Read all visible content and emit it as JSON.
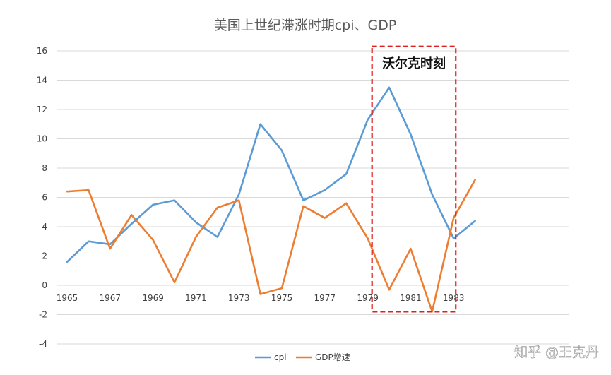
{
  "chart_data": {
    "type": "line",
    "title": "美国上世纪滞涨时期cpi、GDP",
    "x": [
      1965,
      1966,
      1967,
      1968,
      1969,
      1970,
      1971,
      1972,
      1973,
      1974,
      1975,
      1976,
      1977,
      1978,
      1979,
      1980,
      1981,
      1982,
      1983,
      1984
    ],
    "x_tick_labels": [
      "1965",
      "1967",
      "1969",
      "1971",
      "1973",
      "1975",
      "1977",
      "1979",
      "1981",
      "1983"
    ],
    "y_tick_labels": [
      "16",
      "14",
      "12",
      "10",
      "8",
      "6",
      "4",
      "2",
      "0",
      "-2",
      "-4"
    ],
    "ylim": [
      -4,
      16
    ],
    "grid": true,
    "legend_position": "bottom",
    "series": [
      {
        "name": "cpi",
        "color": "#5b9bd5",
        "values": [
          1.6,
          3.0,
          2.8,
          4.2,
          5.5,
          5.8,
          4.3,
          3.3,
          6.2,
          11.0,
          9.2,
          5.8,
          6.5,
          7.6,
          11.3,
          13.5,
          10.3,
          6.2,
          3.2,
          4.4
        ]
      },
      {
        "name": "GDP增速",
        "color": "#ed7d31",
        "values": [
          6.4,
          6.5,
          2.5,
          4.8,
          3.1,
          0.2,
          3.3,
          5.3,
          5.8,
          -0.6,
          -0.2,
          5.4,
          4.6,
          5.6,
          3.2,
          -0.3,
          2.5,
          -1.8,
          4.6,
          7.2
        ]
      }
    ],
    "annotations": [
      {
        "text": "沃尔克时刻",
        "x_range": [
          1979.2,
          1983.1
        ],
        "y_range": [
          -1.8,
          16.3
        ],
        "color": "#e02020"
      }
    ]
  },
  "watermark": "知乎 @王克丹"
}
